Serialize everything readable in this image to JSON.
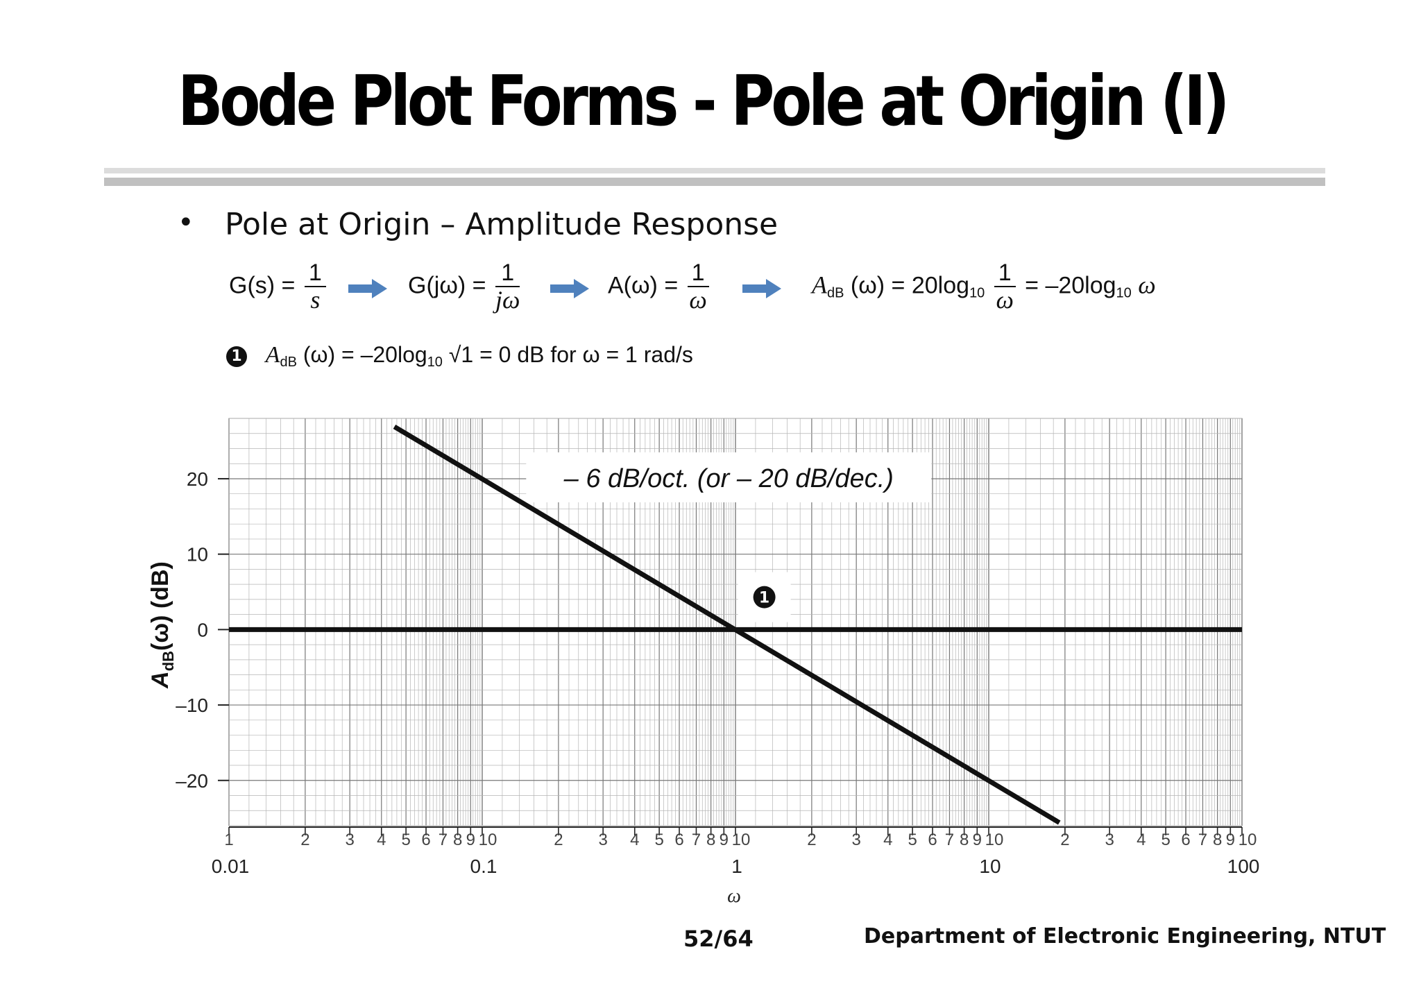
{
  "slide": {
    "title": "Bode Plot Forms - Pole at Origin (I)",
    "bullet_symbol": "•",
    "bullet": "Pole at Origin – Amplitude Response",
    "page": "52/64",
    "department": "Department of Electronic Engineering, NTUT",
    "arrow_color": "#4f81bd"
  },
  "equations": {
    "eq1_lhs": "G(s) =",
    "eq1_num": "1",
    "eq1_den": "s",
    "eq2_lhs": "G(jω) =",
    "eq2_num": "1",
    "eq2_den": "jω",
    "eq3_lhs": "A(ω) =",
    "eq3_num": "1",
    "eq3_den": "ω",
    "eq4_lhs_a": "A",
    "eq4_lhs_sub": "dB",
    "eq4_lhs_b": "(ω) = 20log",
    "eq4_log_sub": "10",
    "eq4_num": "1",
    "eq4_den": "ω",
    "eq4_rhs": "= –20log",
    "eq4_rhs_sub": "10",
    "eq4_rhs_var": "ω"
  },
  "note": {
    "marker": "1",
    "a": "A",
    "a_sub": "dB",
    "text1": "(ω) = –20log",
    "log_sub": "10",
    "text2": "√1 = 0 dB  for ω = 1 rad/s"
  },
  "chart_data": {
    "type": "line",
    "x_scale": "log",
    "xlim": [
      0.01,
      100
    ],
    "ylim": [
      -26,
      28
    ],
    "xlabel": "ω",
    "ylabel": "A_dB(ω)  (dB)",
    "ylabel_main": "A",
    "ylabel_sub": "dB",
    "ylabel_rest": "(ω)  (dB)",
    "y_ticks": [
      20,
      10,
      0,
      -10,
      -20
    ],
    "y_tick_labels": [
      "20",
      "10",
      "0",
      "–10",
      "–20"
    ],
    "x_decade_labels": [
      "0.01",
      "0.1",
      "1",
      "10",
      "100"
    ],
    "x_minor_labels": [
      "1",
      "2",
      "3",
      "4",
      "5",
      "6",
      "7",
      "8",
      "9",
      "10"
    ],
    "grid": true,
    "series": [
      {
        "x": [
          0.045,
          19.0
        ],
        "y": [
          26.9,
          -25.6
        ],
        "color": "#111111"
      },
      {
        "x": [
          0.01,
          100
        ],
        "y": [
          0,
          0
        ],
        "color": "#111111"
      }
    ],
    "annotations": [
      {
        "text": "– 6 dB/oct. (or – 20 dB/dec.)",
        "x": 0.9,
        "y": 20.0
      },
      {
        "text": "1",
        "x": 1.3,
        "y": 4.3,
        "kind": "marker"
      }
    ]
  }
}
